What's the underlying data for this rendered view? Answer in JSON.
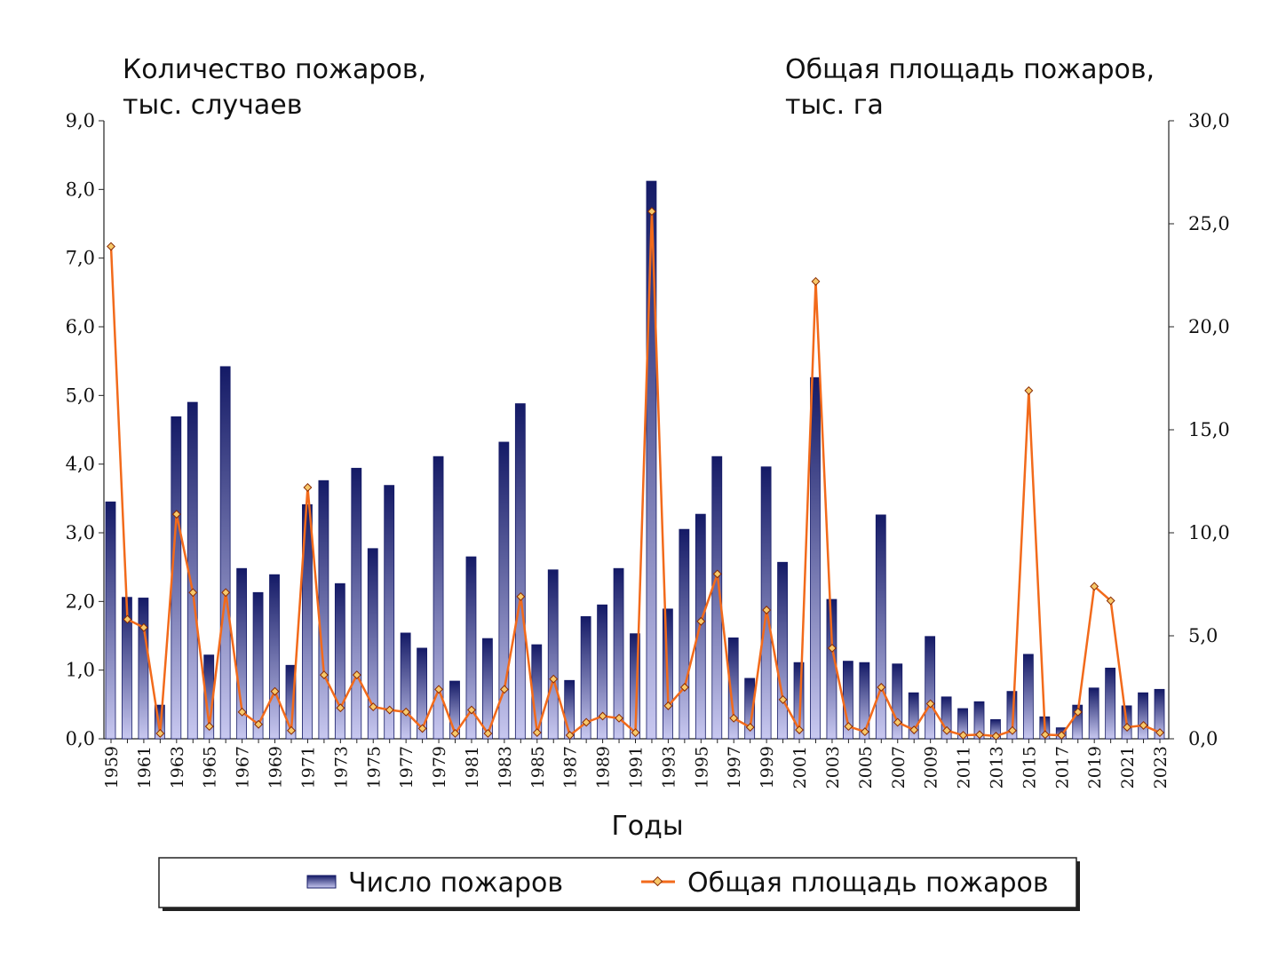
{
  "chart_data": {
    "type": "bar+line",
    "left_title": [
      "Количество пожаров,",
      "тыс. случаев"
    ],
    "right_title": [
      "Общая площадь пожаров,",
      "тыс. га"
    ],
    "xlabel": "Годы",
    "ylim_left": [
      0,
      9
    ],
    "ylim_right": [
      0,
      30
    ],
    "left_ticks": [
      "0,0",
      "1,0",
      "2,0",
      "3,0",
      "4,0",
      "5,0",
      "6,0",
      "7,0",
      "8,0",
      "9,0"
    ],
    "right_ticks": [
      "0,0",
      "5,0",
      "10,0",
      "15,0",
      "20,0",
      "25,0",
      "30,0"
    ],
    "x": [
      1959,
      1960,
      1961,
      1962,
      1963,
      1964,
      1965,
      1966,
      1967,
      1968,
      1969,
      1970,
      1971,
      1972,
      1973,
      1974,
      1975,
      1976,
      1977,
      1978,
      1979,
      1980,
      1981,
      1982,
      1983,
      1984,
      1985,
      1986,
      1987,
      1988,
      1989,
      1990,
      1991,
      1992,
      1993,
      1994,
      1995,
      1996,
      1997,
      1998,
      1999,
      2000,
      2001,
      2002,
      2003,
      2004,
      2005,
      2006,
      2007,
      2008,
      2009,
      2010,
      2011,
      2012,
      2013,
      2014,
      2015,
      2016,
      2017,
      2018,
      2019,
      2020,
      2021,
      2022,
      2023
    ],
    "series": [
      {
        "name": "Число пожаров",
        "type": "bar",
        "axis": "left",
        "color": "#1a1f6e",
        "values": [
          3.45,
          2.06,
          2.05,
          0.49,
          4.69,
          4.9,
          1.22,
          5.42,
          2.48,
          2.13,
          2.39,
          1.07,
          3.41,
          3.76,
          2.26,
          3.94,
          2.77,
          3.69,
          1.54,
          1.32,
          4.11,
          0.84,
          2.65,
          1.46,
          4.32,
          4.88,
          1.37,
          2.46,
          0.85,
          1.78,
          1.95,
          2.48,
          1.53,
          8.12,
          1.89,
          3.05,
          3.27,
          4.11,
          1.47,
          0.88,
          3.96,
          2.57,
          1.11,
          5.26,
          2.03,
          1.13,
          1.11,
          3.26,
          1.09,
          0.67,
          1.49,
          0.61,
          0.44,
          0.54,
          0.28,
          0.69,
          1.23,
          0.32,
          0.16,
          0.49,
          0.74,
          1.03,
          0.48,
          0.67,
          0.72
        ]
      },
      {
        "name": "Общая площадь пожаров",
        "type": "line",
        "axis": "right",
        "color": "#f26a1b",
        "values": [
          23.9,
          5.8,
          5.4,
          0.26,
          10.9,
          7.1,
          0.6,
          7.1,
          1.3,
          0.7,
          2.3,
          0.4,
          12.2,
          3.1,
          1.5,
          3.1,
          1.55,
          1.4,
          1.3,
          0.5,
          2.4,
          0.26,
          1.4,
          0.26,
          2.4,
          6.9,
          0.3,
          2.9,
          0.17,
          0.8,
          1.1,
          1.0,
          0.3,
          25.6,
          1.6,
          2.5,
          5.7,
          8.0,
          1.0,
          0.56,
          6.25,
          1.9,
          0.43,
          22.2,
          4.4,
          0.6,
          0.34,
          2.5,
          0.8,
          0.43,
          1.7,
          0.4,
          0.17,
          0.2,
          0.13,
          0.4,
          16.9,
          0.2,
          0.17,
          1.3,
          7.4,
          6.7,
          0.56,
          0.65,
          0.3
        ]
      }
    ],
    "legend": {
      "placement": "bottom",
      "items": [
        "Число пожаров",
        "Общая площадь пожаров"
      ]
    }
  }
}
